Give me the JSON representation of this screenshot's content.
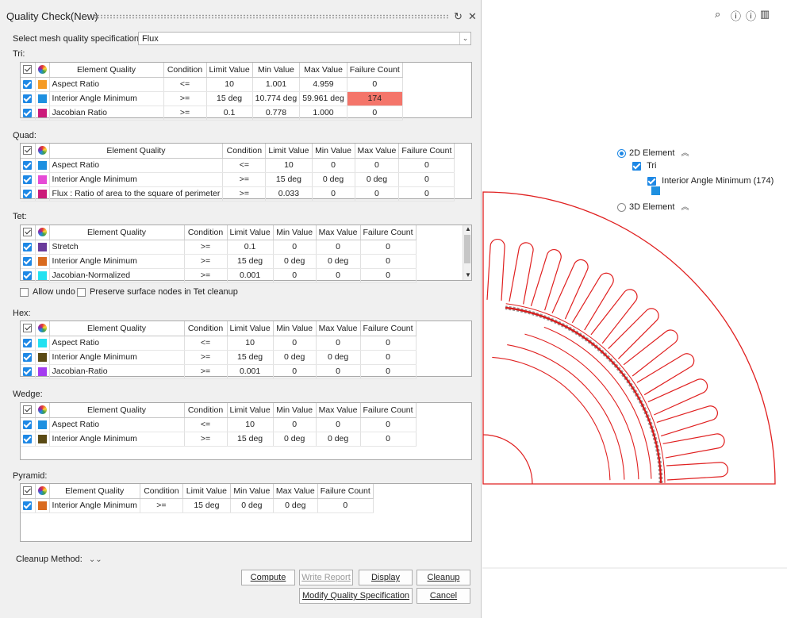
{
  "panel": {
    "title": "Quality Check(New)",
    "spec_label": "Select mesh quality specification",
    "spec_value": "Flux"
  },
  "tri": {
    "section": "Tri:",
    "headers": [
      "Element Quality",
      "Condition",
      "Limit Value",
      "Min Value",
      "Max Value",
      "Failure Count"
    ],
    "rows": [
      {
        "color": "#f59a23",
        "name": "Aspect Ratio",
        "cond": "<=",
        "limit": "10",
        "min": "1.001",
        "max": "4.959",
        "fail": "0"
      },
      {
        "color": "#1e90e0",
        "name": "Interior Angle Minimum",
        "cond": ">=",
        "limit": "15 deg",
        "min": "10.774 deg",
        "max": "59.961 deg",
        "fail": "174"
      },
      {
        "color": "#cc1a7a",
        "name": "Jacobian Ratio",
        "cond": ">=",
        "limit": "0.1",
        "min": "0.778",
        "max": "1.000",
        "fail": "0"
      }
    ]
  },
  "quad": {
    "section": "Quad:",
    "headers": [
      "Element Quality",
      "Condition",
      "Limit Value",
      "Min Value",
      "Max Value",
      "Failure Count"
    ],
    "rows": [
      {
        "color": "#1e90e0",
        "name": "Aspect Ratio",
        "cond": "<=",
        "limit": "10",
        "min": "0",
        "max": "0",
        "fail": "0"
      },
      {
        "color": "#e64bd6",
        "name": "Interior Angle Minimum",
        "cond": ">=",
        "limit": "15 deg",
        "min": "0 deg",
        "max": "0 deg",
        "fail": "0"
      },
      {
        "color": "#cc1a7a",
        "name": "Flux : Ratio of area to the square of perimeter",
        "cond": ">=",
        "limit": "0.033",
        "min": "0",
        "max": "0",
        "fail": "0"
      }
    ]
  },
  "tet": {
    "section": "Tet:",
    "headers": [
      "Element Quality",
      "Condition",
      "Limit Value",
      "Min Value",
      "Max Value",
      "Failure Count"
    ],
    "rows": [
      {
        "color": "#6a3a9a",
        "name": "Stretch",
        "cond": ">=",
        "limit": "0.1",
        "min": "0",
        "max": "0",
        "fail": "0"
      },
      {
        "color": "#d96a1e",
        "name": "Interior Angle Minimum",
        "cond": ">=",
        "limit": "15 deg",
        "min": "0 deg",
        "max": "0 deg",
        "fail": "0"
      },
      {
        "color": "#22e1f0",
        "name": "Jacobian-Normalized",
        "cond": ">=",
        "limit": "0.001",
        "min": "0",
        "max": "0",
        "fail": "0"
      }
    ],
    "allow_undo": "Allow undo",
    "preserve": "Preserve surface nodes in Tet cleanup"
  },
  "hex": {
    "section": "Hex:",
    "headers": [
      "Element Quality",
      "Condition",
      "Limit Value",
      "Min Value",
      "Max Value",
      "Failure Count"
    ],
    "rows": [
      {
        "color": "#22e1f0",
        "name": "Aspect Ratio",
        "cond": "<=",
        "limit": "10",
        "min": "0",
        "max": "0",
        "fail": "0"
      },
      {
        "color": "#5a4a14",
        "name": "Interior Angle Minimum",
        "cond": ">=",
        "limit": "15 deg",
        "min": "0 deg",
        "max": "0 deg",
        "fail": "0"
      },
      {
        "color": "#a43cf0",
        "name": "Jacobian-Ratio",
        "cond": ">=",
        "limit": "0.001",
        "min": "0",
        "max": "0",
        "fail": "0"
      }
    ]
  },
  "wedge": {
    "section": "Wedge:",
    "headers": [
      "Element Quality",
      "Condition",
      "Limit Value",
      "Min Value",
      "Max Value",
      "Failure Count"
    ],
    "rows": [
      {
        "color": "#1e90e0",
        "name": "Aspect Ratio",
        "cond": "<=",
        "limit": "10",
        "min": "0",
        "max": "0",
        "fail": "0"
      },
      {
        "color": "#5a4a14",
        "name": "Interior Angle Minimum",
        "cond": ">=",
        "limit": "15 deg",
        "min": "0 deg",
        "max": "0 deg",
        "fail": "0"
      }
    ]
  },
  "pyramid": {
    "section": "Pyramid:",
    "headers": [
      "Element Quality",
      "Condition",
      "Limit Value",
      "Min Value",
      "Max Value",
      "Failure Count"
    ],
    "rows": [
      {
        "color": "#d96a1e",
        "name": "Interior Angle Minimum",
        "cond": ">=",
        "limit": "15 deg",
        "min": "0 deg",
        "max": "0 deg",
        "fail": "0"
      }
    ]
  },
  "cleanup_method": "Cleanup Method:",
  "buttons": {
    "compute": "Compute",
    "write_report": "Write Report",
    "display": "Display",
    "cleanup": "Cleanup",
    "modify": "Modify Quality Specification",
    "cancel": "Cancel"
  },
  "viewer": {
    "element_2d": "2D Element",
    "tri": "Tri",
    "interior_angle": "Interior Angle Minimum (174)",
    "element_3d": "3D Element",
    "swatch_color": "#1e90e0"
  }
}
